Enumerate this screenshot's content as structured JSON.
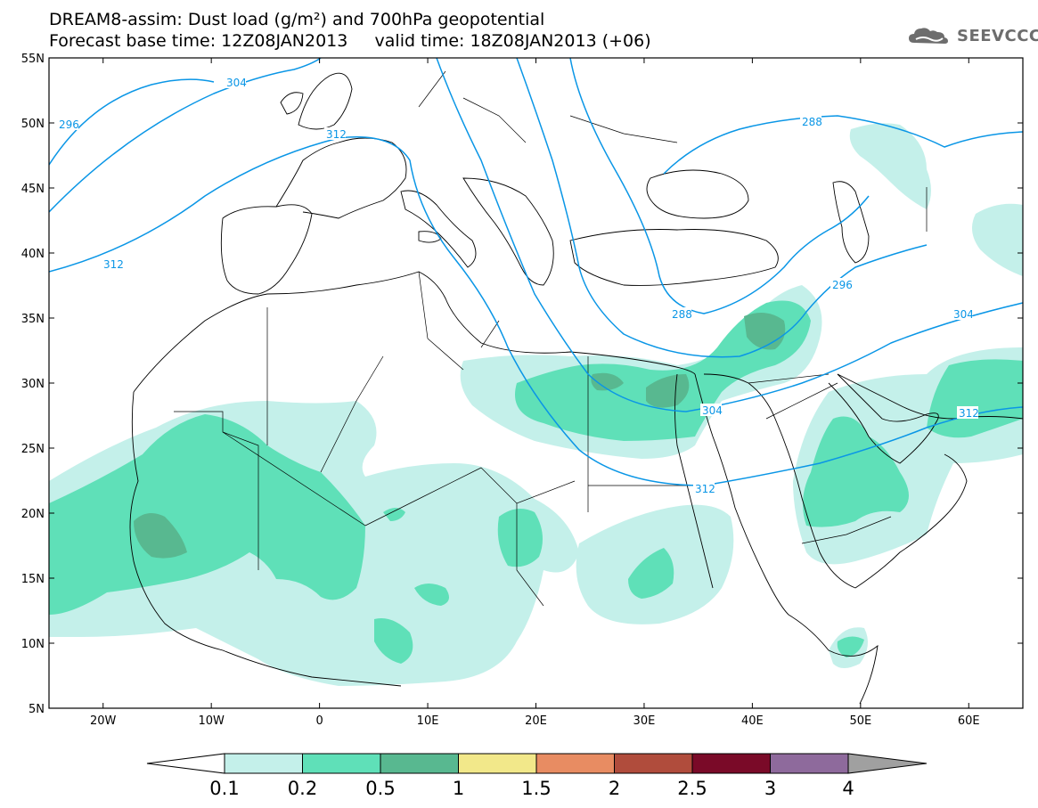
{
  "header": {
    "title_line1": "DREAM8-assim: Dust load (g/m²) and 700hPa geopotential",
    "title_line2": "Forecast base time: 12Z08JAN2013     valid time: 18Z08JAN2013 (+06)",
    "logo_text": "SEEVCCC"
  },
  "axes": {
    "lat_labels": [
      "55N",
      "50N",
      "45N",
      "40N",
      "35N",
      "30N",
      "25N",
      "20N",
      "15N",
      "10N",
      "5N"
    ],
    "lon_labels": [
      "20W",
      "10W",
      "0",
      "10E",
      "20E",
      "30E",
      "40E",
      "50E",
      "60E"
    ]
  },
  "contour_labels": {
    "c296_left": "296",
    "c304_top": "304",
    "c312_top": "312",
    "c312_west": "312",
    "c288_east": "288",
    "c288_south": "288",
    "c296_east": "296",
    "c304_east": "304",
    "c304_egypt": "304",
    "c312_east": "312",
    "c312_south": "312"
  },
  "colorbar": {
    "colors": [
      "#c4f0ea",
      "#5fe0b8",
      "#58b890",
      "#f2e88a",
      "#e88c62",
      "#b04c3c",
      "#7a0a28",
      "#8e6a9c",
      "#a0a0a0"
    ],
    "labels": [
      "0.1",
      "0.2",
      "0.5",
      "1",
      "1.5",
      "2",
      "2.5",
      "3",
      "4"
    ],
    "under_color": "#ffffff",
    "over_color": "#a0a0a0"
  },
  "colors": {
    "contour": "#0a96e6",
    "dust_01": "#c4f0ea",
    "dust_02": "#5fe0b8",
    "dust_05": "#58b890"
  }
}
